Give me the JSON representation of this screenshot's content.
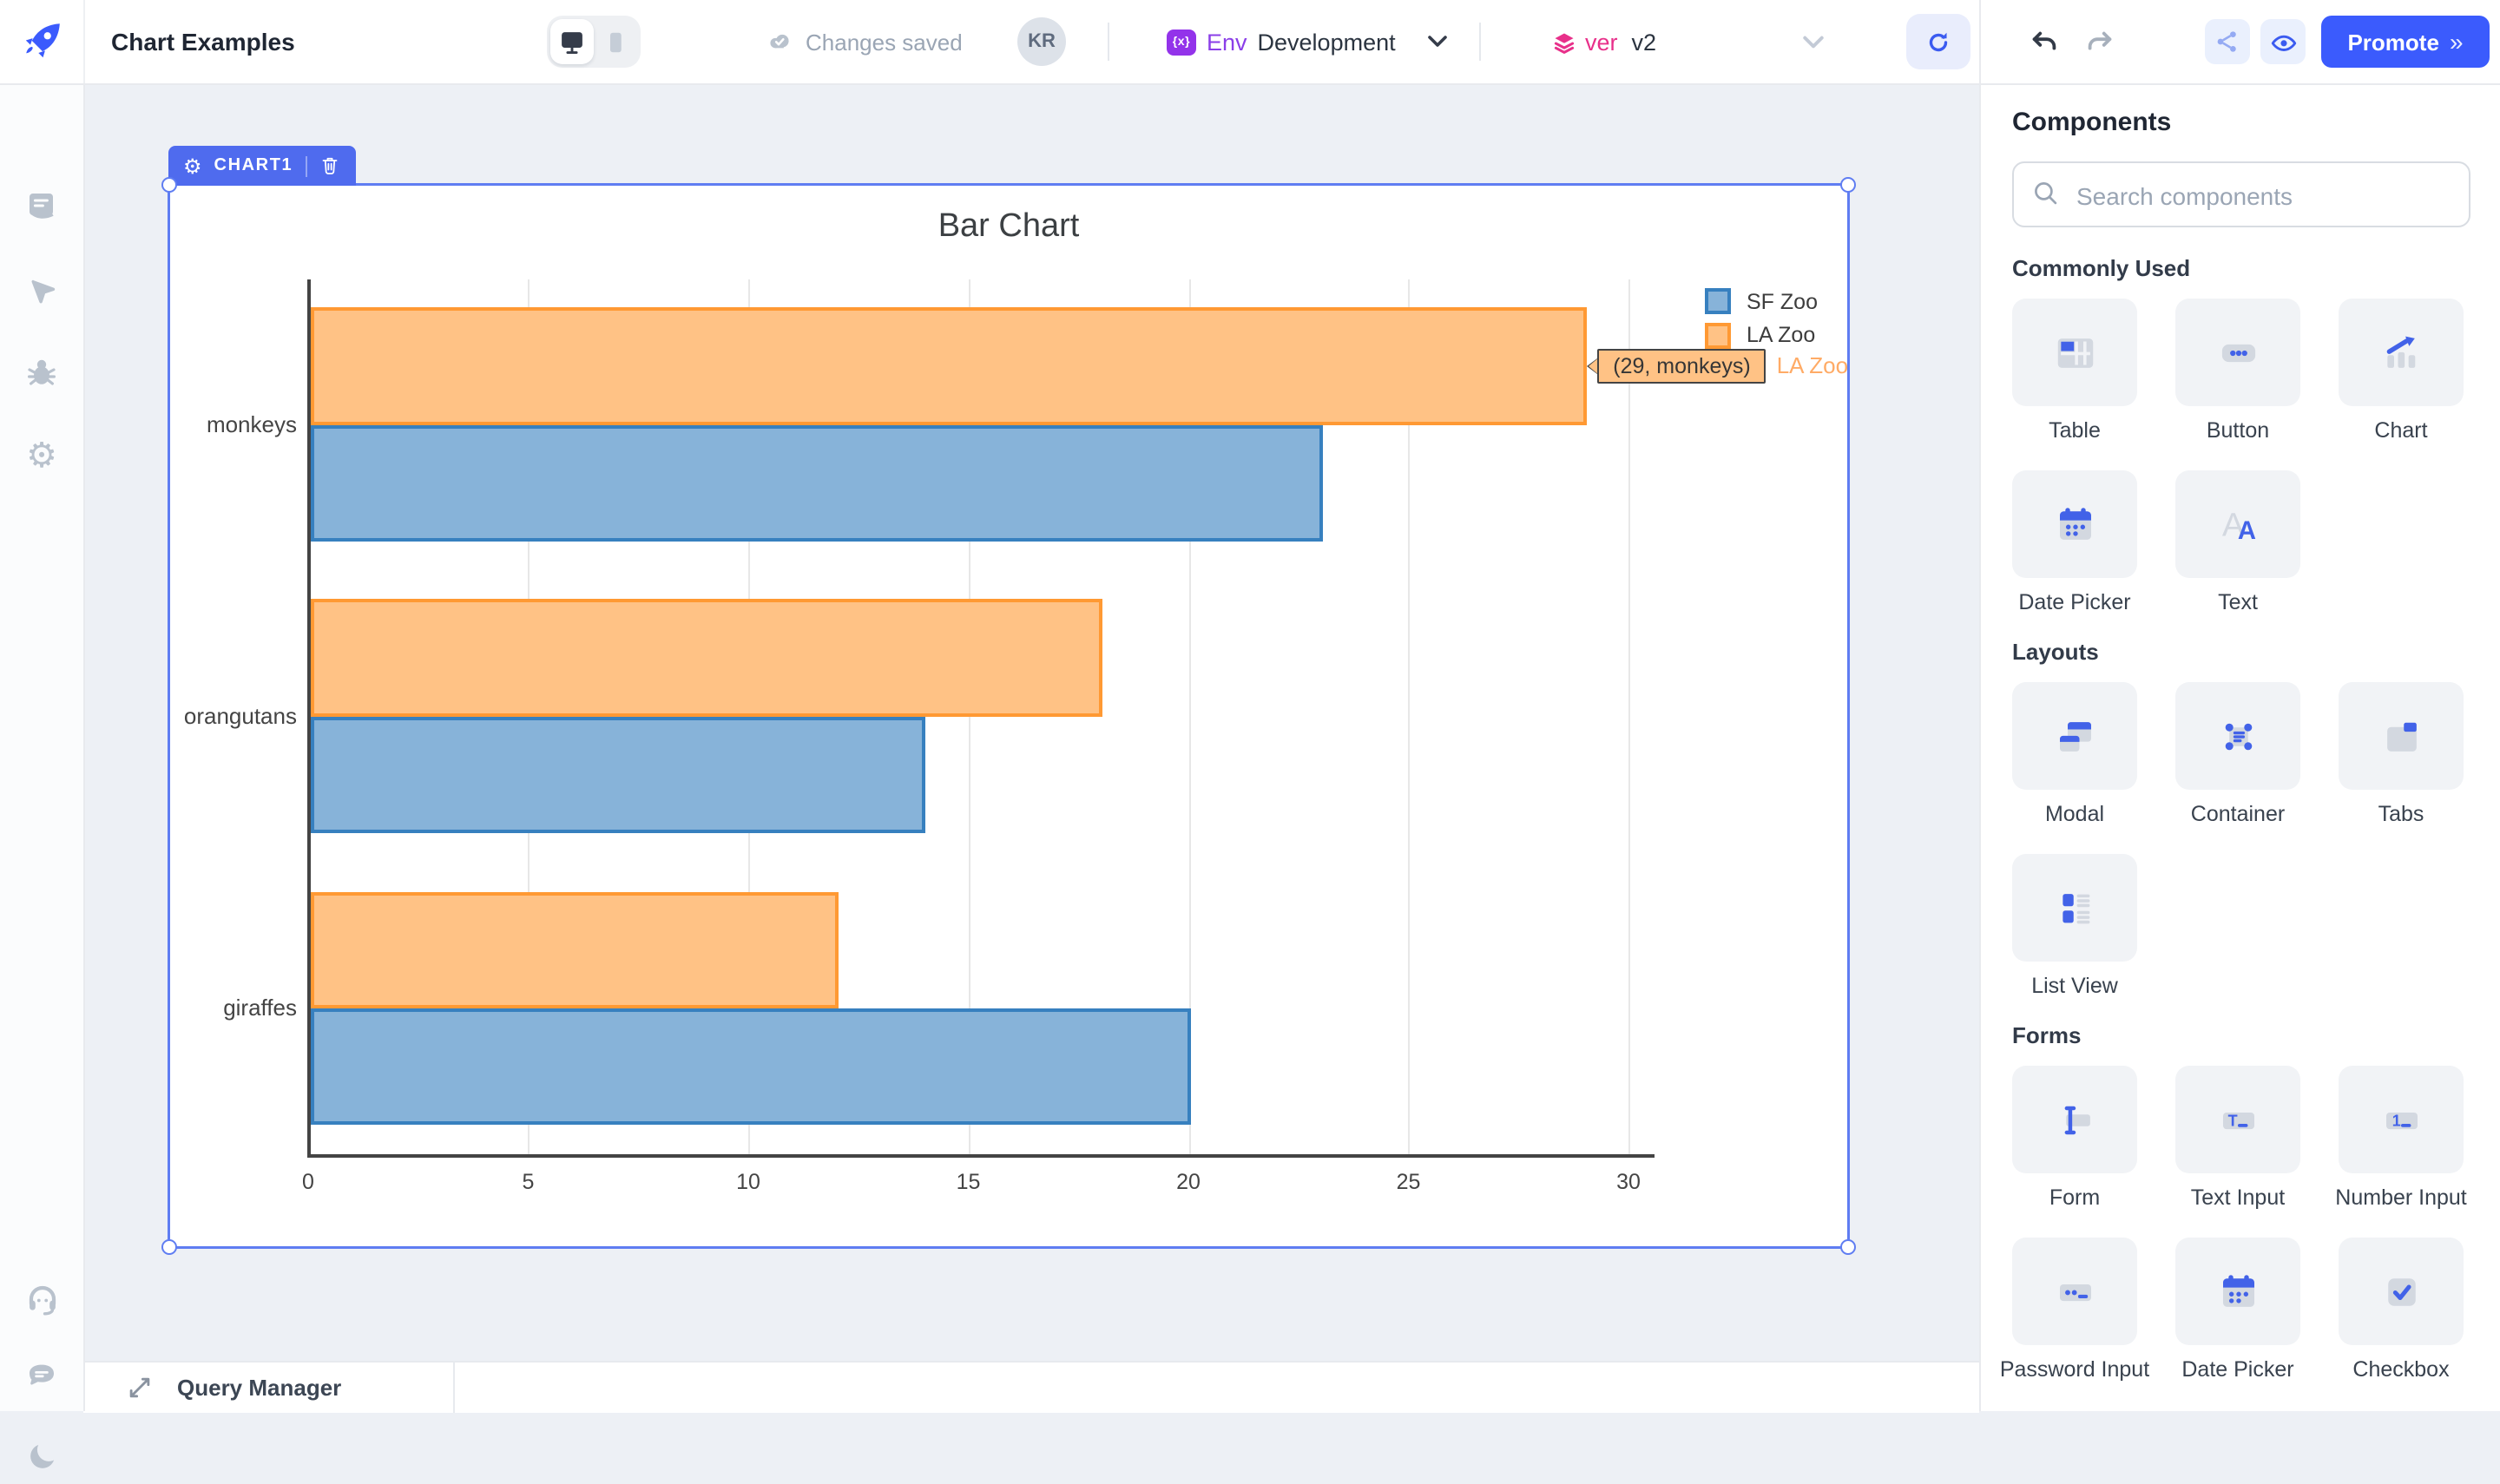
{
  "header": {
    "title": "Chart Examples",
    "status_text": "Changes saved",
    "avatar_initials": "KR",
    "env": {
      "badge": "{x}",
      "label": "Env",
      "value": "Development"
    },
    "version": {
      "label": "ver",
      "value": "v2"
    },
    "promote_label": "Promote",
    "promote_chevrons": "»"
  },
  "sidebar": {
    "top_icons": [
      "scripts-icon",
      "navigate-icon",
      "debug-icon",
      "settings-icon"
    ],
    "bottom_icons": [
      "support-icon",
      "chat-icon",
      "dark-mode-icon"
    ]
  },
  "canvas": {
    "selected_component": {
      "badge_label": "CHART1"
    },
    "bottom_bar": {
      "label": "Query Manager"
    }
  },
  "chart_data": {
    "type": "bar",
    "orientation": "horizontal",
    "title": "Bar Chart",
    "categories": [
      "monkeys",
      "orangutans",
      "giraffes"
    ],
    "series": [
      {
        "name": "SF Zoo",
        "values": [
          23,
          14,
          20
        ],
        "fill": "#87b3d9",
        "border": "#3780bf"
      },
      {
        "name": "LA Zoo",
        "values": [
          29,
          18,
          12
        ],
        "fill": "#ffc285",
        "border": "#ff9933"
      }
    ],
    "x_ticks": [
      0,
      5,
      10,
      15,
      20,
      25,
      30
    ],
    "x_range": [
      0,
      30.6
    ],
    "grid": true,
    "legend_position": "top-right",
    "hover_tooltip": {
      "text": "(29, monkeys)",
      "series": "LA Zoo",
      "category": "monkeys",
      "value": 29,
      "bg": "#ffc285",
      "series_color": "#ffab66"
    }
  },
  "components_panel": {
    "title": "Components",
    "search_placeholder": "Search components",
    "sections": [
      {
        "heading": "Commonly Used",
        "items": [
          {
            "label": "Table",
            "icon": "table-icon"
          },
          {
            "label": "Button",
            "icon": "button-icon"
          },
          {
            "label": "Chart",
            "icon": "chart-icon"
          },
          {
            "label": "Date Picker",
            "icon": "datepicker-icon"
          },
          {
            "label": "Text",
            "icon": "text-icon"
          }
        ]
      },
      {
        "heading": "Layouts",
        "items": [
          {
            "label": "Modal",
            "icon": "modal-icon"
          },
          {
            "label": "Container",
            "icon": "container-icon"
          },
          {
            "label": "Tabs",
            "icon": "tabs-icon"
          },
          {
            "label": "List View",
            "icon": "listview-icon"
          }
        ]
      },
      {
        "heading": "Forms",
        "items": [
          {
            "label": "Form",
            "icon": "form-icon"
          },
          {
            "label": "Text Input",
            "icon": "textinput-icon"
          },
          {
            "label": "Number Input",
            "icon": "numberinput-icon"
          },
          {
            "label": "Password Input",
            "icon": "passwordinput-icon"
          },
          {
            "label": "Date Picker",
            "icon": "datepicker-icon"
          },
          {
            "label": "Checkbox",
            "icon": "checkbox-icon"
          }
        ]
      }
    ]
  },
  "colors": {
    "accent_blue": "#3b5bfd",
    "tile_blue": "#4262e8",
    "selection_blue": "#5f7df2",
    "env_purple": "#9333ea",
    "version_pink": "#e8308a",
    "canvas_bg": "#edf0f5"
  }
}
